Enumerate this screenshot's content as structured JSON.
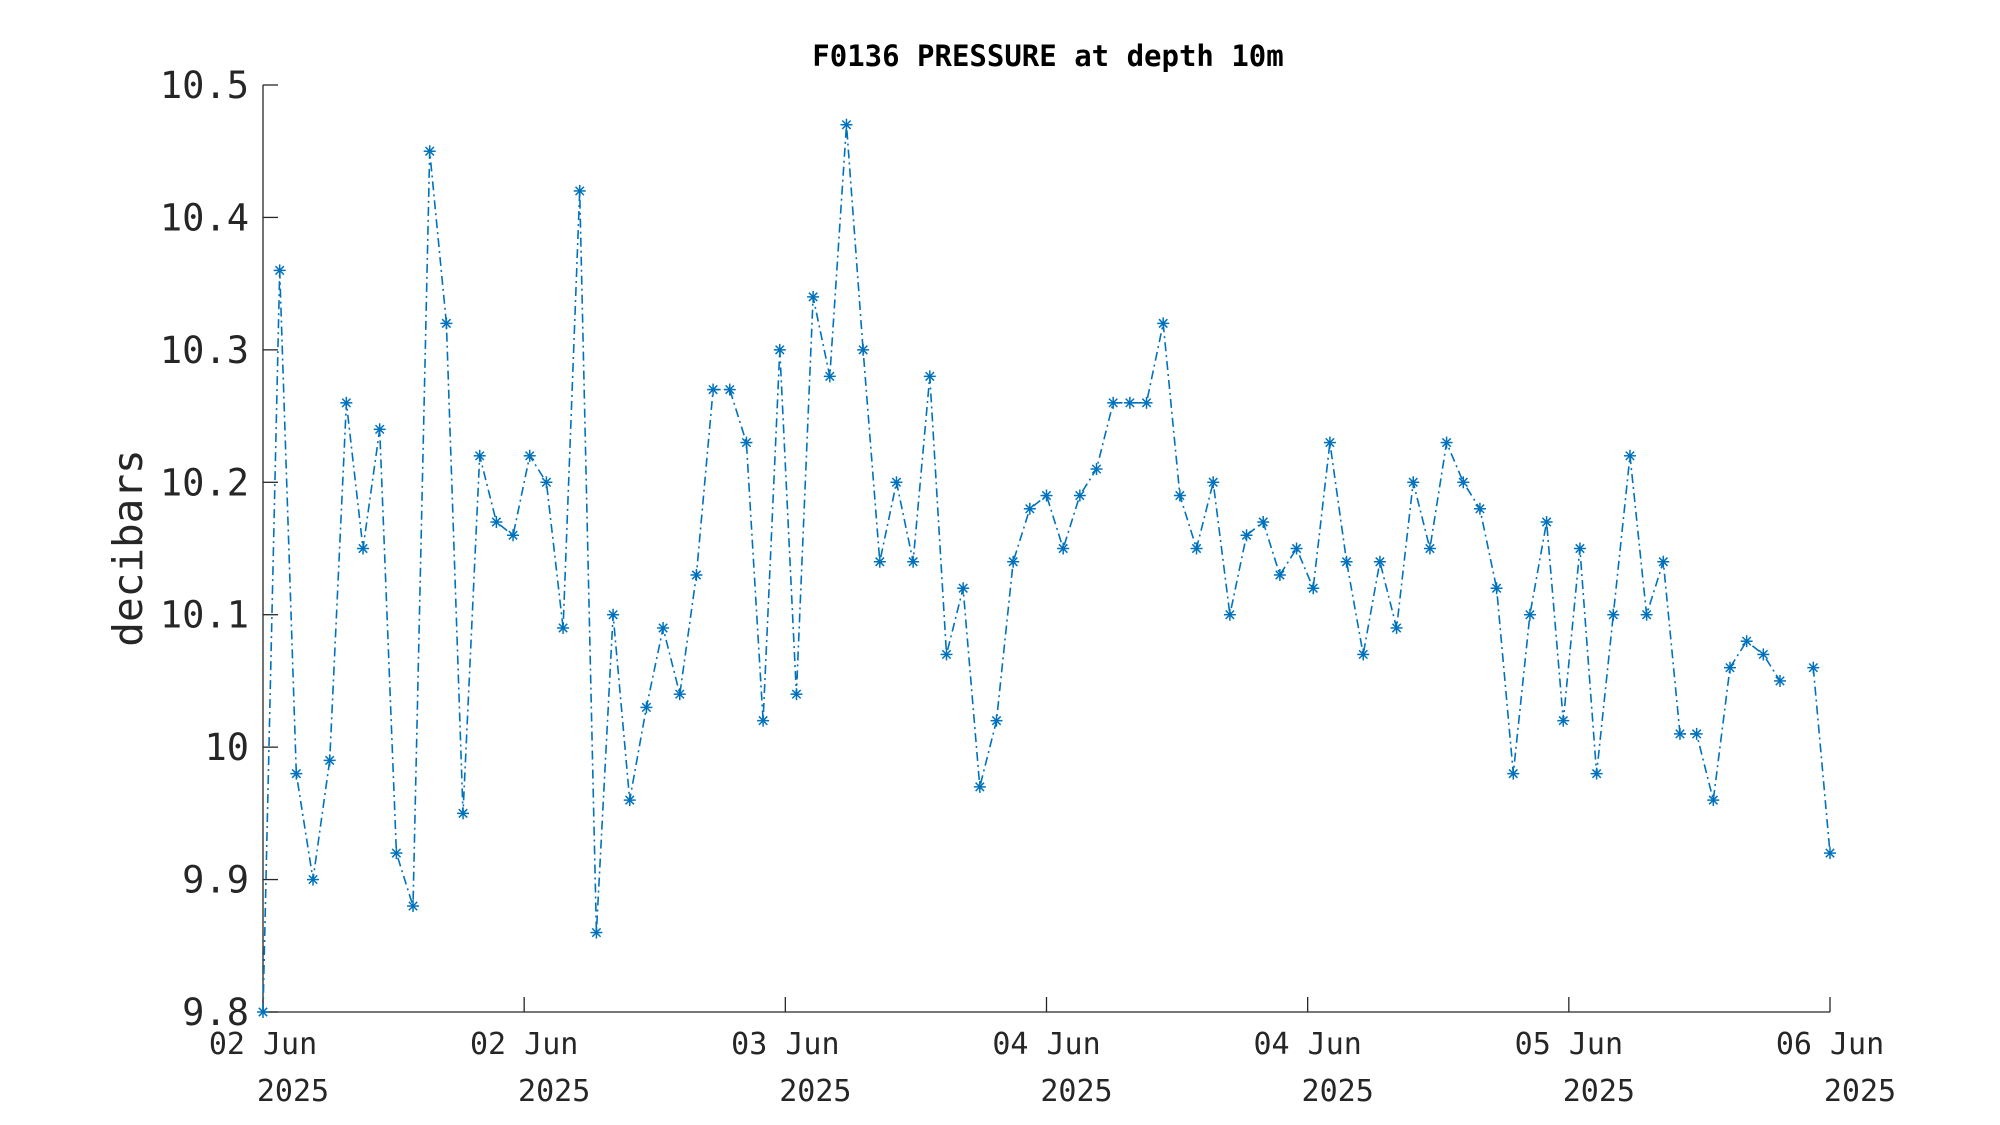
{
  "chart_data": {
    "type": "line",
    "title": "F0136 PRESSURE at depth 10m",
    "ylabel": "decibars",
    "xlabel": "",
    "ylim": [
      9.8,
      10.5
    ],
    "yticks": [
      "9.8",
      "9.9",
      "10",
      "10.1",
      "10.2",
      "10.3",
      "10.4",
      "10.5"
    ],
    "yticks_values": [
      9.8,
      9.9,
      10.0,
      10.1,
      10.2,
      10.3,
      10.4,
      10.5
    ],
    "xticks": [
      {
        "line1": "02 Jun",
        "line2": "2025"
      },
      {
        "line1": "02 Jun",
        "line2": "2025"
      },
      {
        "line1": "03 Jun",
        "line2": "2025"
      },
      {
        "line1": "04 Jun",
        "line2": "2025"
      },
      {
        "line1": "04 Jun",
        "line2": "2025"
      },
      {
        "line1": "05 Jun",
        "line2": "2025"
      },
      {
        "line1": "06 Jun",
        "line2": "2025"
      }
    ],
    "grid": false,
    "line_style": "dash-dot",
    "marker": "asterisk",
    "color": "#0072BD",
    "series": [
      {
        "values": [
          9.8,
          10.36,
          9.98,
          9.9,
          9.99,
          10.26,
          10.15,
          10.24,
          9.92,
          9.88,
          10.45,
          10.32,
          9.95,
          10.22,
          10.17,
          10.16,
          10.22,
          10.2,
          10.09,
          10.42,
          9.86,
          10.1,
          9.96,
          10.03,
          10.09,
          10.04,
          10.13,
          10.27,
          10.27,
          10.23,
          10.02,
          10.3,
          10.04,
          10.34,
          10.28,
          10.47,
          10.3,
          10.14,
          10.2,
          10.14,
          10.28,
          10.07,
          10.12,
          9.97,
          10.02,
          10.14,
          10.18,
          10.19,
          10.15,
          10.19,
          10.21,
          10.26,
          10.26,
          10.26,
          10.32,
          10.19,
          10.15,
          10.2,
          10.1,
          10.16,
          10.17,
          10.13,
          10.15,
          10.12,
          10.23,
          10.14,
          10.07,
          10.14,
          10.09,
          10.2,
          10.15,
          10.23,
          10.2,
          10.18,
          10.12,
          9.98,
          10.1,
          10.17,
          10.02,
          10.15,
          9.98,
          10.1,
          10.22,
          10.1,
          10.14,
          10.01,
          10.01,
          9.96,
          10.06,
          10.08,
          10.07,
          10.05,
          null,
          10.06,
          9.92
        ]
      }
    ]
  }
}
